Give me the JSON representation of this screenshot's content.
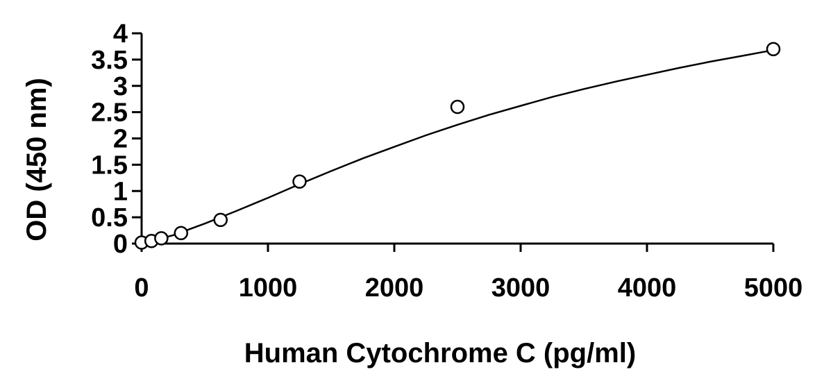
{
  "chart_data": {
    "type": "scatter",
    "title": "",
    "xlabel": "Human Cytochrome C (pg/ml)",
    "ylabel": "OD (450 nm)",
    "xlim": [
      0,
      5000
    ],
    "ylim": [
      0,
      4
    ],
    "x_ticks": [
      "0",
      "1000",
      "2000",
      "3000",
      "4000",
      "5000"
    ],
    "y_ticks": [
      "0",
      "0.5",
      "1",
      "1.5",
      "2",
      "2.5",
      "3",
      "3.5",
      "4"
    ],
    "grid": false,
    "legend": "none",
    "series": [
      {
        "marker": "open-circle",
        "x": [
          0,
          78,
          156,
          312,
          625,
          1250,
          2500,
          5000
        ],
        "y": [
          0.02,
          0.05,
          0.1,
          0.2,
          0.45,
          1.18,
          2.6,
          3.7
        ]
      }
    ],
    "fit_curve": {
      "x": [
        0,
        250,
        500,
        750,
        1000,
        1250,
        1500,
        1750,
        2000,
        2250,
        2500,
        2750,
        3000,
        3250,
        3500,
        3750,
        4000,
        4250,
        4500,
        4750,
        5000
      ],
      "y": [
        0.0,
        0.16,
        0.38,
        0.62,
        0.87,
        1.13,
        1.38,
        1.62,
        1.84,
        2.06,
        2.26,
        2.45,
        2.62,
        2.79,
        2.94,
        3.08,
        3.21,
        3.34,
        3.46,
        3.57,
        3.68
      ]
    },
    "colors": {
      "axis": "#000000",
      "marker_stroke": "#000000",
      "marker_fill": "#ffffff",
      "curve": "#000000"
    }
  }
}
